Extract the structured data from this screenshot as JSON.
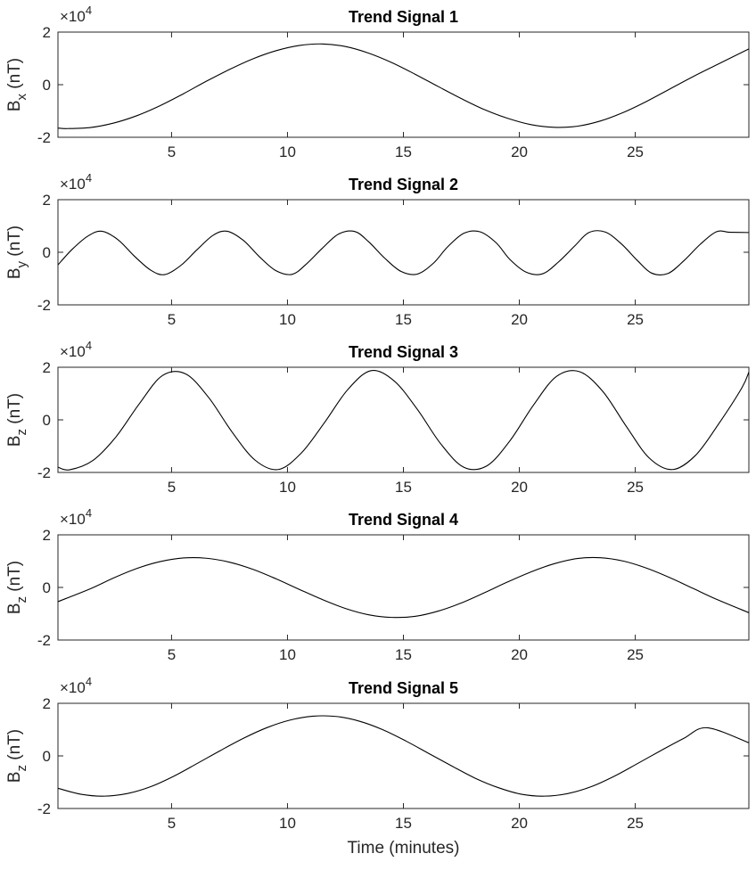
{
  "chart_data": [
    {
      "type": "line",
      "title": "Trend Signal 1",
      "ylabel_main": "B",
      "ylabel_sub": "x",
      "ylabel_unit": " (nT)",
      "exponent_base": "×10",
      "exponent_power": "4",
      "ylim": [
        -20000,
        20000
      ],
      "yticks": [
        -20000,
        0,
        20000
      ],
      "ytick_labels": [
        "-2",
        "0",
        "2"
      ],
      "xlim": [
        0.1,
        29.9
      ],
      "xticks": [
        5,
        10,
        15,
        20,
        25
      ],
      "xtick_labels": [
        "5",
        "10",
        "15",
        "20",
        "25"
      ],
      "x": [
        0.1,
        0.5,
        1.5,
        2.5,
        3.5,
        4.5,
        5.5,
        6.5,
        7.5,
        8.5,
        9.5,
        10.5,
        11.5,
        12.5,
        13.5,
        14.5,
        15.5,
        16.5,
        17.5,
        18.5,
        19.5,
        20.5,
        21.5,
        22.5,
        23.5,
        24.5,
        25.5,
        26.5,
        27.5,
        28.5,
        29.9
      ],
      "values": [
        -16500,
        -16700,
        -16300,
        -14600,
        -11800,
        -8000,
        -3500,
        1300,
        5800,
        9800,
        12900,
        14900,
        15500,
        14500,
        12000,
        8400,
        4000,
        -700,
        -5300,
        -9500,
        -12800,
        -15200,
        -16200,
        -15800,
        -13800,
        -10500,
        -6300,
        -1600,
        3100,
        7500,
        13600
      ],
      "xlabel": ""
    },
    {
      "type": "line",
      "title": "Trend Signal 2",
      "ylabel_main": "B",
      "ylabel_sub": "y",
      "ylabel_unit": " (nT)",
      "exponent_base": "×10",
      "exponent_power": "4",
      "ylim": [
        -20000,
        20000
      ],
      "yticks": [
        -20000,
        0,
        20000
      ],
      "ytick_labels": [
        "-2",
        "0",
        "2"
      ],
      "xlim": [
        0.1,
        29.9
      ],
      "xticks": [
        5,
        10,
        15,
        20,
        25
      ],
      "xtick_labels": [
        "5",
        "10",
        "15",
        "20",
        "25"
      ],
      "x": [
        0.1,
        0.7,
        1.4,
        2.0,
        2.7,
        3.4,
        4.1,
        4.7,
        5.4,
        6.1,
        6.8,
        7.4,
        8.1,
        8.8,
        9.5,
        10.2,
        10.8,
        11.5,
        12.2,
        12.9,
        13.5,
        14.2,
        14.9,
        15.6,
        16.3,
        16.9,
        17.6,
        18.3,
        19.0,
        19.6,
        20.3,
        21.0,
        21.7,
        22.4,
        23.0,
        23.7,
        24.4,
        25.1,
        25.7,
        26.4,
        27.1,
        27.8,
        28.5,
        29.1,
        29.9
      ],
      "values": [
        -4800,
        1000,
        6200,
        8000,
        4700,
        -1500,
        -6800,
        -8500,
        -5000,
        1000,
        6500,
        8000,
        4500,
        -1800,
        -7000,
        -8400,
        -4600,
        1500,
        6900,
        7900,
        4000,
        -2300,
        -7300,
        -8300,
        -4100,
        2000,
        7200,
        7800,
        3600,
        -2800,
        -7600,
        -8200,
        -3600,
        2500,
        7500,
        7700,
        3200,
        -3200,
        -7900,
        -8100,
        -3200,
        3000,
        7800,
        7600,
        7500
      ],
      "xlabel": ""
    },
    {
      "type": "line",
      "title": "Trend Signal 3",
      "ylabel_main": "B",
      "ylabel_sub": "z",
      "ylabel_unit": " (nT)",
      "exponent_base": "×10",
      "exponent_power": "4",
      "ylim": [
        -20000,
        20000
      ],
      "yticks": [
        -20000,
        0,
        20000
      ],
      "ytick_labels": [
        "-2",
        "0",
        "2"
      ],
      "xlim": [
        0.1,
        29.9
      ],
      "xticks": [
        5,
        10,
        15,
        20,
        25
      ],
      "xtick_labels": [
        "5",
        "10",
        "15",
        "20",
        "25"
      ],
      "x": [
        0.1,
        0.6,
        1.6,
        2.6,
        3.6,
        4.6,
        5.6,
        6.6,
        7.6,
        8.6,
        9.6,
        10.6,
        11.6,
        12.6,
        13.6,
        14.6,
        15.6,
        16.6,
        17.6,
        18.6,
        19.6,
        20.6,
        21.6,
        22.6,
        23.6,
        24.6,
        25.6,
        26.6,
        27.6,
        28.6,
        29.6,
        29.9
      ],
      "values": [
        -18000,
        -19000,
        -15500,
        -6500,
        6000,
        16800,
        17500,
        8500,
        -4500,
        -15300,
        -18900,
        -12600,
        -1000,
        11500,
        18700,
        14800,
        4000,
        -9000,
        -18000,
        -17500,
        -7900,
        5500,
        16500,
        18300,
        10800,
        -2300,
        -14500,
        -18900,
        -13500,
        -1500,
        12200,
        18200
      ],
      "xlabel": ""
    },
    {
      "type": "line",
      "title": "Trend Signal 4",
      "ylabel_main": "B",
      "ylabel_sub": "z",
      "ylabel_unit": " (nT)",
      "exponent_base": "×10",
      "exponent_power": "4",
      "ylim": [
        -20000,
        20000
      ],
      "yticks": [
        -20000,
        0,
        20000
      ],
      "ytick_labels": [
        "-2",
        "0",
        "2"
      ],
      "xlim": [
        0.1,
        29.9
      ],
      "xticks": [
        5,
        10,
        15,
        20,
        25
      ],
      "xtick_labels": [
        "5",
        "10",
        "15",
        "20",
        "25"
      ],
      "x": [
        0.1,
        1.5,
        2.5,
        3.5,
        4.5,
        5.5,
        6.5,
        7.5,
        8.5,
        9.5,
        10.5,
        11.5,
        12.5,
        13.5,
        14.5,
        15.5,
        16.5,
        17.5,
        18.5,
        19.5,
        20.5,
        21.5,
        22.5,
        23.5,
        24.5,
        25.5,
        26.5,
        27.5,
        28.5,
        29.9
      ],
      "values": [
        -5400,
        -500,
        3600,
        7200,
        9800,
        11200,
        11100,
        9600,
        6900,
        3300,
        -700,
        -4600,
        -8000,
        -10400,
        -11400,
        -11000,
        -9000,
        -5900,
        -2000,
        2100,
        5900,
        9000,
        11000,
        11300,
        10000,
        7300,
        3700,
        -400,
        -4500,
        -9600
      ],
      "xlabel": ""
    },
    {
      "type": "line",
      "title": "Trend Signal 5",
      "ylabel_main": "B",
      "ylabel_sub": "z",
      "ylabel_unit": " (nT)",
      "exponent_base": "×10",
      "exponent_power": "4",
      "ylim": [
        -20000,
        20000
      ],
      "yticks": [
        -20000,
        0,
        20000
      ],
      "ytick_labels": [
        "-2",
        "0",
        "2"
      ],
      "xlim": [
        0.1,
        29.9
      ],
      "xticks": [
        5,
        10,
        15,
        20,
        25
      ],
      "xtick_labels": [
        "5",
        "10",
        "15",
        "20",
        "25"
      ],
      "x": [
        0.1,
        1.1,
        2.1,
        3.1,
        4.1,
        5.1,
        6.1,
        7.1,
        8.1,
        9.1,
        10.1,
        11.1,
        12.1,
        13.1,
        14.1,
        15.1,
        16.1,
        17.1,
        18.1,
        19.1,
        20.1,
        21.1,
        22.1,
        23.1,
        24.1,
        25.1,
        26.1,
        27.1,
        28.1,
        29.9
      ],
      "values": [
        -12300,
        -14600,
        -15300,
        -14300,
        -11700,
        -7700,
        -2900,
        2000,
        6700,
        10700,
        13600,
        15100,
        15000,
        13200,
        10000,
        5700,
        900,
        -3900,
        -8500,
        -12100,
        -14600,
        -15300,
        -14300,
        -11700,
        -7700,
        -2900,
        2000,
        6700,
        10700,
        5000
      ],
      "xlabel": "Time (minutes)"
    }
  ]
}
